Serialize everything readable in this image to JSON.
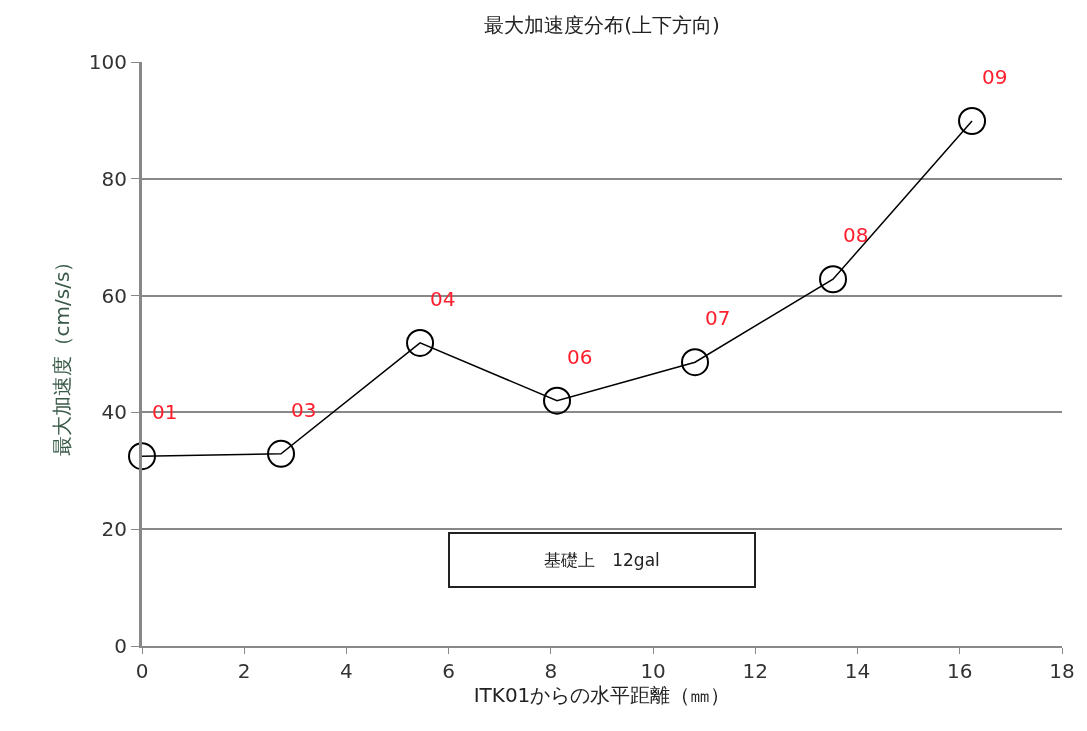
{
  "chart_data": {
    "type": "line",
    "title": "最大加速度分布(上下方向)",
    "xlabel": "ITK01からの水平距離（㎜）",
    "ylabel": "最大加速度（cm/s/s）",
    "x": [
      0,
      2.72,
      5.44,
      8.12,
      10.82,
      13.52,
      16.24
    ],
    "series": [
      {
        "color": "#000000",
        "values": [
          32.5,
          32.9,
          51.9,
          42.0,
          48.6,
          62.8,
          89.9
        ]
      }
    ],
    "xlim": [
      0,
      18
    ],
    "xticks": [
      0,
      2,
      4,
      6,
      8,
      10,
      12,
      14,
      16,
      18
    ],
    "ylim": [
      0,
      100
    ],
    "yticks": [
      0,
      20,
      40,
      60,
      80,
      100
    ],
    "grid": "y",
    "marker": "circle",
    "line_style": "solid",
    "annotations": [
      {
        "text": "01",
        "x": 0,
        "y": 32.5
      },
      {
        "text": "03",
        "x": 2.72,
        "y": 32.9
      },
      {
        "text": "04",
        "x": 5.44,
        "y": 51.9
      },
      {
        "text": "06",
        "x": 8.12,
        "y": 42.0
      },
      {
        "text": "07",
        "x": 10.82,
        "y": 48.6
      },
      {
        "text": "08",
        "x": 13.52,
        "y": 62.8
      },
      {
        "text": "09",
        "x": 16.24,
        "y": 89.9
      },
      "基礎上　12gal"
    ]
  }
}
